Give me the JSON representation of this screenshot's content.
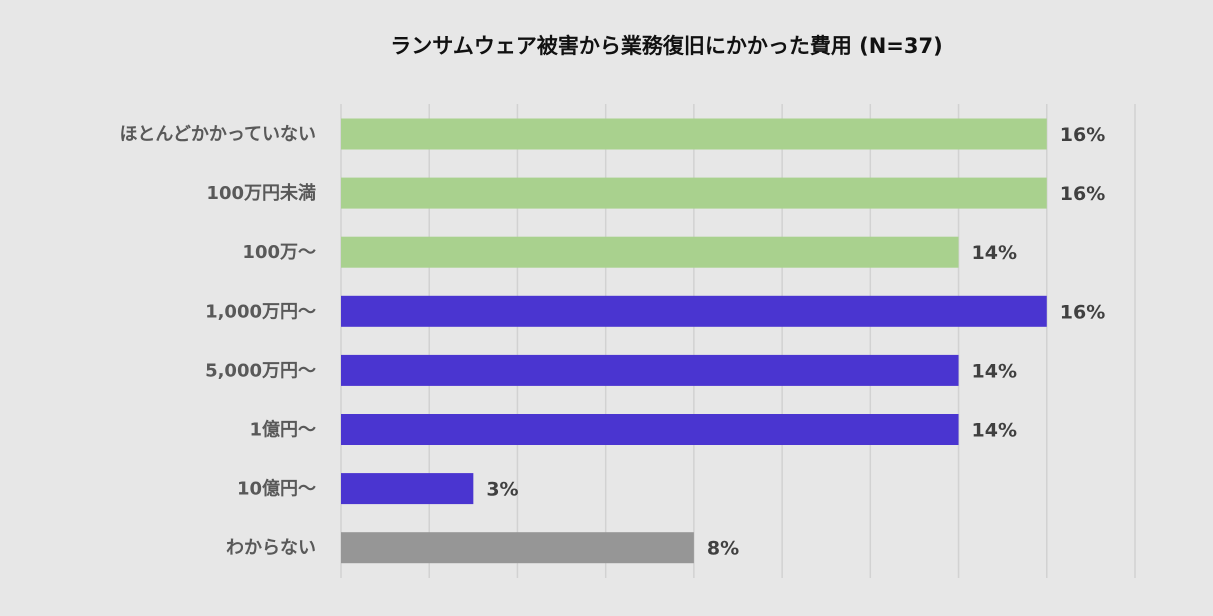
{
  "chart_data": {
    "type": "bar",
    "orientation": "horizontal",
    "title": "ランサムウェア被害から業務復旧にかかった費用 (N=37)",
    "xlabel": "",
    "ylabel": "",
    "categories": [
      "ほとんどかかっていない",
      "100万円未満",
      "100万～",
      "1,000万円～",
      "5,000万円～",
      "1億円～",
      "10億円～",
      "わからない"
    ],
    "values": [
      16,
      16,
      14,
      16,
      14,
      14,
      3,
      8
    ],
    "value_labels": [
      "16%",
      "16%",
      "14%",
      "16%",
      "14%",
      "14%",
      "3%",
      "8%"
    ],
    "bar_colors": [
      "#a9d18e",
      "#a9d18e",
      "#a9d18e",
      "#4a35d0",
      "#4a35d0",
      "#4a35d0",
      "#4a35d0",
      "#969696"
    ],
    "xlim": [
      0,
      18
    ],
    "grid": true,
    "legend": "none"
  }
}
